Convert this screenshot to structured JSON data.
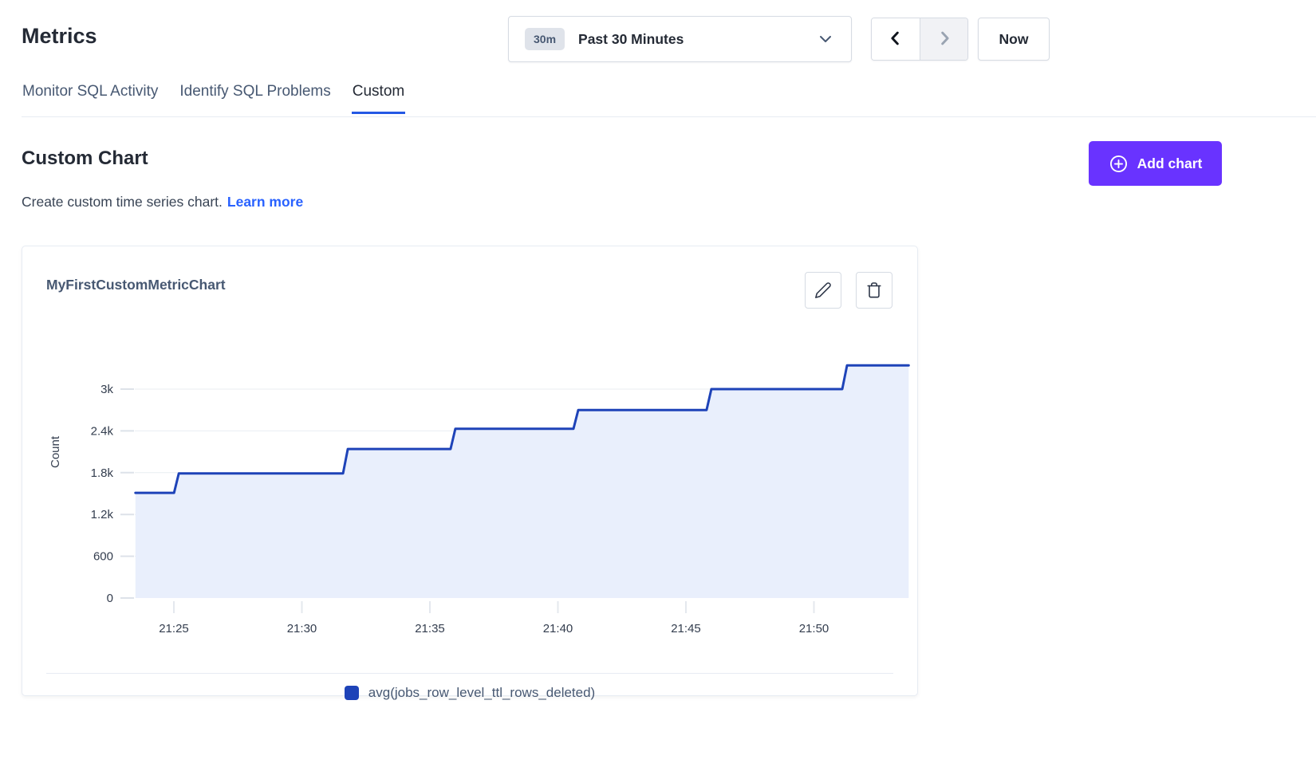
{
  "header": {
    "title": "Metrics"
  },
  "time_controls": {
    "range_badge": "30m",
    "range_label": "Past 30 Minutes",
    "now_label": "Now",
    "prev_enabled": true,
    "next_enabled": false
  },
  "tabs": [
    {
      "label": "Monitor SQL Activity",
      "active": false
    },
    {
      "label": "Identify SQL Problems",
      "active": false
    },
    {
      "label": "Custom",
      "active": true
    }
  ],
  "section": {
    "heading": "Custom Chart",
    "description": "Create custom time series chart.",
    "learn_more": "Learn more",
    "add_chart_label": "Add chart"
  },
  "icons": {
    "dropdown": "chevron-down-icon",
    "prev": "chevron-left-icon",
    "next": "chevron-right-icon",
    "add": "plus-circle-icon",
    "edit": "pencil-icon",
    "delete": "trash-icon",
    "legend": "square-swatch"
  },
  "colors": {
    "accent_purple": "#6933ff",
    "link_blue": "#2962ff",
    "tab_underline": "#2458e4",
    "series_line": "#1e43b8",
    "series_fill": "#e9effc",
    "gridline": "#e9edf2",
    "text_dark": "#242a35",
    "text_muted": "#475872"
  },
  "chart_data": {
    "type": "area",
    "variant": "step",
    "title": "MyFirstCustomMetricChart",
    "ylabel": "Count",
    "xlabel": "",
    "x_unit": "minutes after 21:00",
    "x_range": [
      23.5,
      53.7
    ],
    "ylim": [
      0,
      3600
    ],
    "grid": "horizontal",
    "legend_position": "bottom-center",
    "x_ticks": [
      {
        "t": 25,
        "label": "21:25"
      },
      {
        "t": 30,
        "label": "21:30"
      },
      {
        "t": 35,
        "label": "21:35"
      },
      {
        "t": 40,
        "label": "21:40"
      },
      {
        "t": 45,
        "label": "21:45"
      },
      {
        "t": 50,
        "label": "21:50"
      }
    ],
    "y_ticks": [
      {
        "v": 0,
        "label": "0"
      },
      {
        "v": 600,
        "label": "600"
      },
      {
        "v": 1200,
        "label": "1.2k"
      },
      {
        "v": 1800,
        "label": "1.8k"
      },
      {
        "v": 2400,
        "label": "2.4k"
      },
      {
        "v": 3000,
        "label": "3k"
      }
    ],
    "x_end": 53.7,
    "series": [
      {
        "name": "avg(jobs_row_level_ttl_rows_deleted)",
        "color": "#1e43b8",
        "fill": "#e9effc",
        "points": [
          [
            23.5,
            1510
          ],
          [
            25.1,
            1790
          ],
          [
            31.7,
            2140
          ],
          [
            35.9,
            2430
          ],
          [
            40.7,
            2700
          ],
          [
            45.9,
            3000
          ],
          [
            51.2,
            3340
          ]
        ]
      }
    ]
  }
}
